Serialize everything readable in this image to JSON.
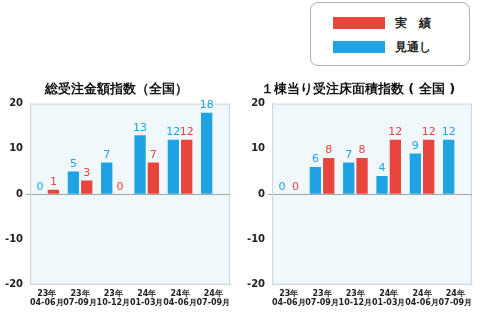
{
  "chart_data": [
    {
      "type": "bar",
      "title": "総受注金額指数（全国）",
      "categories": [
        "23年\n04-06月",
        "23年\n07-09月",
        "23年\n10-12月",
        "24年\n01-03月",
        "24年\n04-06月",
        "24年\n07-09月"
      ],
      "series": [
        {
          "name": "実　績",
          "color": "#e8453c",
          "values": [
            1,
            3,
            0,
            7,
            12,
            null
          ]
        },
        {
          "name": "見通し",
          "color": "#1fa3e3",
          "values": [
            0,
            5,
            7,
            13,
            12,
            18
          ]
        }
      ],
      "ylim": [
        -20,
        20
      ],
      "yticks": [
        -20,
        -10,
        0,
        10,
        20
      ],
      "grid": false,
      "data_labels": true,
      "legend": "upper right"
    },
    {
      "type": "bar",
      "title": "１棟当り受注床面積指数 ( 全国 )",
      "categories": [
        "23年\n04-06月",
        "23年\n07-09月",
        "23年\n10-12月",
        "24年\n01-03月",
        "24年\n04-06月",
        "24年\n07-09月"
      ],
      "series": [
        {
          "name": "実　績",
          "color": "#e8453c",
          "values": [
            0,
            8,
            8,
            12,
            12,
            null
          ]
        },
        {
          "name": "見通し",
          "color": "#1fa3e3",
          "values": [
            0,
            6,
            7,
            4,
            9,
            12
          ]
        }
      ],
      "ylim": [
        -20,
        20
      ],
      "yticks": [
        -20,
        -10,
        0,
        10,
        20
      ],
      "grid": false,
      "data_labels": true
    }
  ]
}
